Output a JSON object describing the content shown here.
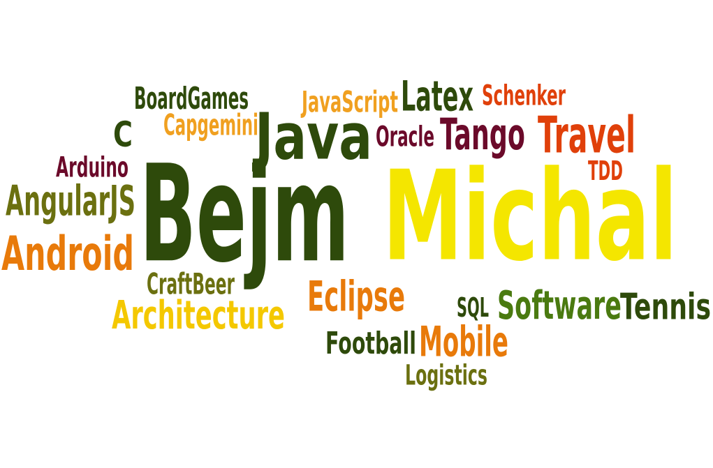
{
  "words": [
    {
      "id": "michal",
      "text": "Michal",
      "color": "#f4e600"
    },
    {
      "id": "bejm",
      "text": "Bejm",
      "color": "#2e4a0b"
    },
    {
      "id": "java",
      "text": "Java",
      "color": "#2e4a0b"
    },
    {
      "id": "travel",
      "text": "Travel",
      "color": "#e0400a"
    },
    {
      "id": "tango",
      "text": "Tango",
      "color": "#6b0a2a"
    },
    {
      "id": "latex",
      "text": "Latex",
      "color": "#2e4a0b"
    },
    {
      "id": "schenker",
      "text": "Schenker",
      "color": "#e0400a"
    },
    {
      "id": "javascript",
      "text": "JavaScript",
      "color": "#f0a020"
    },
    {
      "id": "oracle",
      "text": "Oracle",
      "color": "#6b0a2a"
    },
    {
      "id": "tdd",
      "text": "TDD",
      "color": "#e0400a"
    },
    {
      "id": "boardgames",
      "text": "BoardGames",
      "color": "#2e4a0b"
    },
    {
      "id": "capgemini",
      "text": "Capgemini",
      "color": "#f0a020"
    },
    {
      "id": "c",
      "text": "C",
      "color": "#2e4a0b"
    },
    {
      "id": "arduino",
      "text": "Arduino",
      "color": "#6b0a2a"
    },
    {
      "id": "angularjs",
      "text": "AngularJS",
      "color": "#6b7010"
    },
    {
      "id": "android",
      "text": "Android",
      "color": "#e87a0a"
    },
    {
      "id": "craftbeer",
      "text": "CraftBeer",
      "color": "#6b7010"
    },
    {
      "id": "architecture",
      "text": "Architecture",
      "color": "#f4c800"
    },
    {
      "id": "eclipse",
      "text": "Eclipse",
      "color": "#e87a0a"
    },
    {
      "id": "sql",
      "text": "SQL",
      "color": "#2e4a0b"
    },
    {
      "id": "software",
      "text": "Software",
      "color": "#4a7a10"
    },
    {
      "id": "tennis",
      "text": "Tennis",
      "color": "#2e4a0b"
    },
    {
      "id": "football",
      "text": "Football",
      "color": "#2e4a0b"
    },
    {
      "id": "mobile",
      "text": "Mobile",
      "color": "#e87a0a"
    },
    {
      "id": "logistics",
      "text": "Logistics",
      "color": "#6b7010"
    }
  ]
}
